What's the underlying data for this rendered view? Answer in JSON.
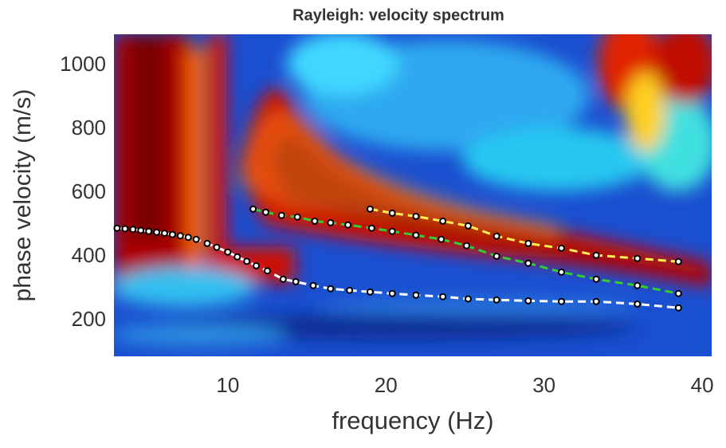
{
  "chart_data": {
    "type": "scatter",
    "title": "Rayleigh: velocity spectrum",
    "xlabel": "frequency (Hz)",
    "ylabel": "phase velocity (m/s)",
    "xlim": [
      2.8,
      40.6
    ],
    "ylim": [
      88,
      1098
    ],
    "xticks": [
      10,
      20,
      30,
      40
    ],
    "yticks": [
      200,
      400,
      600,
      800,
      1000
    ],
    "grid": false,
    "series": [
      {
        "color": "#ffffff",
        "x": [
          3,
          3.5,
          4,
          4.5,
          5,
          5.5,
          6,
          6.5,
          7,
          7.5,
          8,
          8.7,
          9.3,
          10,
          10.6,
          11.2,
          11.8,
          12.5,
          13.5,
          14.3,
          15.4,
          16.5,
          17.7,
          19,
          20.4,
          21.9,
          23.6,
          25.2,
          27,
          29,
          31.1,
          33.3,
          35.9,
          38.5
        ],
        "values": [
          490,
          488,
          486,
          483,
          480,
          477,
          474,
          470,
          466,
          461,
          455,
          442,
          430,
          415,
          400,
          386,
          372,
          356,
          330,
          322,
          310,
          300,
          295,
          290,
          285,
          280,
          275,
          268,
          265,
          262,
          260,
          260,
          252,
          240
        ]
      },
      {
        "color": "#33cc33",
        "x": [
          11.6,
          12.4,
          13.4,
          14.4,
          15.5,
          16.5,
          17.6,
          19.1,
          20.4,
          21.9,
          23.5,
          25.1,
          27,
          29,
          31.1,
          33.3,
          35.9,
          38.5
        ],
        "values": [
          550,
          540,
          530,
          525,
          512,
          507,
          500,
          490,
          480,
          468,
          455,
          435,
          402,
          380,
          352,
          330,
          310,
          285
        ]
      },
      {
        "color": "#ffee55",
        "x": [
          19,
          20.4,
          21.9,
          23.6,
          25.2,
          27,
          29,
          31.1,
          33.3,
          35.9,
          38.5
        ],
        "values": [
          550,
          537,
          527,
          512,
          497,
          465,
          442,
          427,
          405,
          395,
          385
        ]
      }
    ]
  }
}
